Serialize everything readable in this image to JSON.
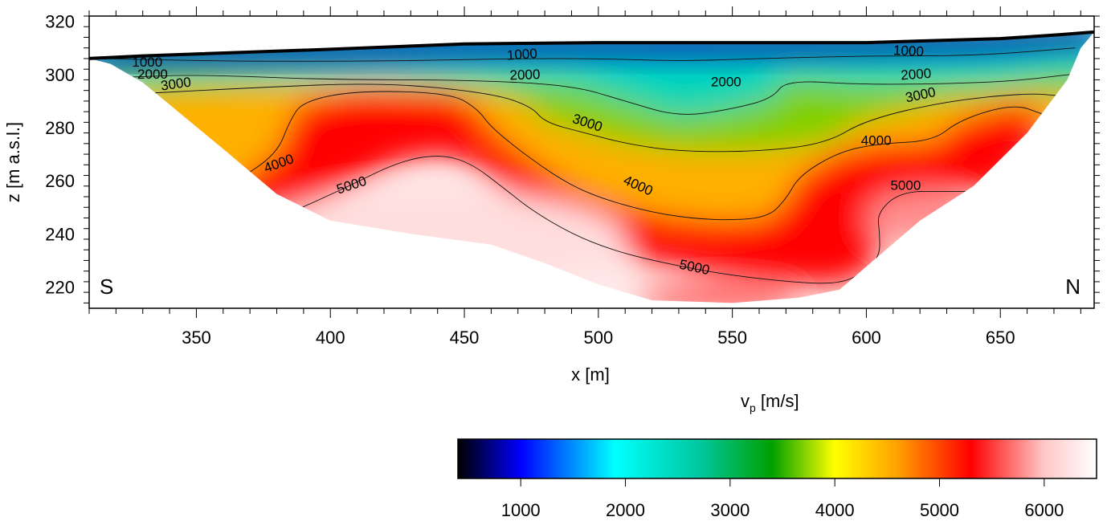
{
  "chart_data": {
    "type": "heatmap",
    "title": "",
    "xlabel": "x [m]",
    "ylabel": "z [m a.s.l.]",
    "xlim": [
      310,
      685
    ],
    "ylim": [
      212,
      322
    ],
    "xticks": [
      350,
      400,
      450,
      500,
      550,
      600,
      650
    ],
    "yticks": [
      220,
      240,
      260,
      280,
      300,
      320
    ],
    "corner_labels": {
      "left": "S",
      "right": "N"
    },
    "colorbar": {
      "label": "v",
      "label_subscript": "p",
      "label_unit": " [m/s]",
      "range": [
        400,
        6500
      ],
      "ticks": [
        1000,
        2000,
        3000,
        4000,
        5000,
        6000
      ],
      "colors": [
        {
          "value": 400,
          "color": "#000000"
        },
        {
          "value": 1000,
          "color": "#0000ff"
        },
        {
          "value": 1900,
          "color": "#00ffff"
        },
        {
          "value": 2700,
          "color": "#00c8a0"
        },
        {
          "value": 3400,
          "color": "#00a000"
        },
        {
          "value": 4000,
          "color": "#ffff00"
        },
        {
          "value": 4600,
          "color": "#ffa000"
        },
        {
          "value": 5300,
          "color": "#ff0000"
        },
        {
          "value": 6000,
          "color": "#ffc8c8"
        },
        {
          "value": 6500,
          "color": "#ffffff"
        }
      ]
    },
    "surface": [
      [
        310,
        306
      ],
      [
        330,
        307
      ],
      [
        400,
        309.5
      ],
      [
        450,
        311.5
      ],
      [
        500,
        312
      ],
      [
        550,
        312
      ],
      [
        600,
        312
      ],
      [
        650,
        313.5
      ],
      [
        672,
        315
      ],
      [
        685,
        316
      ]
    ],
    "bottom": [
      [
        318,
        304
      ],
      [
        330,
        297
      ],
      [
        360,
        272
      ],
      [
        380,
        255
      ],
      [
        400,
        245
      ],
      [
        430,
        240
      ],
      [
        460,
        236
      ],
      [
        480,
        229
      ],
      [
        500,
        221
      ],
      [
        520,
        215
      ],
      [
        550,
        214
      ],
      [
        575,
        216
      ],
      [
        590,
        219
      ],
      [
        605,
        232
      ],
      [
        620,
        245
      ],
      [
        640,
        258
      ],
      [
        660,
        278
      ],
      [
        675,
        298
      ],
      [
        680,
        310
      ]
    ],
    "series": [
      {
        "name": "1000",
        "level": 1000,
        "points": [
          [
            315,
            306
          ],
          [
            360,
            305
          ],
          [
            420,
            305
          ],
          [
            470,
            306
          ],
          [
            500,
            306
          ],
          [
            530,
            305
          ],
          [
            560,
            306
          ],
          [
            600,
            307
          ],
          [
            640,
            307
          ],
          [
            678,
            310
          ]
        ]
      },
      {
        "name": "2000",
        "level": 2000,
        "points": [
          [
            325,
            299
          ],
          [
            350,
            300
          ],
          [
            400,
            298
          ],
          [
            450,
            298
          ],
          [
            490,
            296
          ],
          [
            510,
            290
          ],
          [
            530,
            284
          ],
          [
            550,
            287
          ],
          [
            565,
            291
          ],
          [
            570,
            298
          ],
          [
            600,
            296
          ],
          [
            650,
            297
          ],
          [
            676,
            300
          ]
        ]
      },
      {
        "name": "3000",
        "level": 3000,
        "points": [
          [
            333,
            293
          ],
          [
            370,
            295
          ],
          [
            420,
            297
          ],
          [
            460,
            293
          ],
          [
            475,
            288
          ],
          [
            480,
            282
          ],
          [
            495,
            278
          ],
          [
            510,
            274
          ],
          [
            530,
            271
          ],
          [
            560,
            271
          ],
          [
            585,
            274
          ],
          [
            600,
            283
          ],
          [
            630,
            290
          ],
          [
            660,
            293
          ],
          [
            672,
            292
          ]
        ]
      },
      {
        "name": "4000",
        "level": 4000,
        "points": [
          [
            365,
            260
          ],
          [
            380,
            270
          ],
          [
            385,
            283
          ],
          [
            390,
            290
          ],
          [
            410,
            294
          ],
          [
            445,
            293
          ],
          [
            455,
            287
          ],
          [
            460,
            280
          ],
          [
            475,
            268
          ],
          [
            490,
            258
          ],
          [
            505,
            252
          ],
          [
            525,
            247
          ],
          [
            545,
            245
          ],
          [
            563,
            246
          ],
          [
            570,
            253
          ],
          [
            575,
            262
          ],
          [
            590,
            271
          ],
          [
            605,
            274
          ],
          [
            625,
            275
          ],
          [
            635,
            283
          ],
          [
            655,
            289
          ],
          [
            666,
            285
          ]
        ]
      },
      {
        "name": "5000",
        "level": 5000,
        "points": [
          [
            385,
            248
          ],
          [
            405,
            257
          ],
          [
            425,
            267
          ],
          [
            440,
            270
          ],
          [
            452,
            267
          ],
          [
            465,
            257
          ],
          [
            475,
            249
          ],
          [
            490,
            240
          ],
          [
            505,
            234
          ],
          [
            520,
            230
          ],
          [
            545,
            225
          ],
          [
            570,
            222
          ],
          [
            590,
            221
          ],
          [
            600,
            226
          ],
          [
            605,
            232
          ],
          [
            605,
            240
          ],
          [
            604,
            248
          ],
          [
            613,
            256
          ],
          [
            630,
            256
          ],
          [
            638,
            256
          ]
        ]
      }
    ],
    "contour_labels": [
      {
        "text": "1000",
        "x": 326,
        "y": 303,
        "angle": 0
      },
      {
        "text": "1000",
        "x": 466,
        "y": 305.5,
        "angle": -4
      },
      {
        "text": "1000",
        "x": 610,
        "y": 307.5,
        "angle": 3
      },
      {
        "text": "2000",
        "x": 328,
        "y": 298.5,
        "angle": 0
      },
      {
        "text": "2000",
        "x": 467,
        "y": 298,
        "angle": -2
      },
      {
        "text": "2000",
        "x": 542,
        "y": 295.5,
        "angle": 0
      },
      {
        "text": "2000",
        "x": 613,
        "y": 298,
        "angle": -4
      },
      {
        "text": "3000",
        "x": 337,
        "y": 294,
        "angle": -8
      },
      {
        "text": "3000",
        "x": 490,
        "y": 282,
        "angle": 18
      },
      {
        "text": "3000",
        "x": 615,
        "y": 289.5,
        "angle": -12
      },
      {
        "text": "4000",
        "x": 376,
        "y": 263,
        "angle": -20
      },
      {
        "text": "4000",
        "x": 509,
        "y": 259,
        "angle": 24
      },
      {
        "text": "4000",
        "x": 598,
        "y": 273.5,
        "angle": 0
      },
      {
        "text": "5000",
        "x": 403,
        "y": 255,
        "angle": -18
      },
      {
        "text": "5000",
        "x": 530,
        "y": 227,
        "angle": 12
      },
      {
        "text": "5000",
        "x": 609,
        "y": 256.5,
        "angle": 0
      }
    ],
    "grid": false,
    "legend": "none"
  }
}
